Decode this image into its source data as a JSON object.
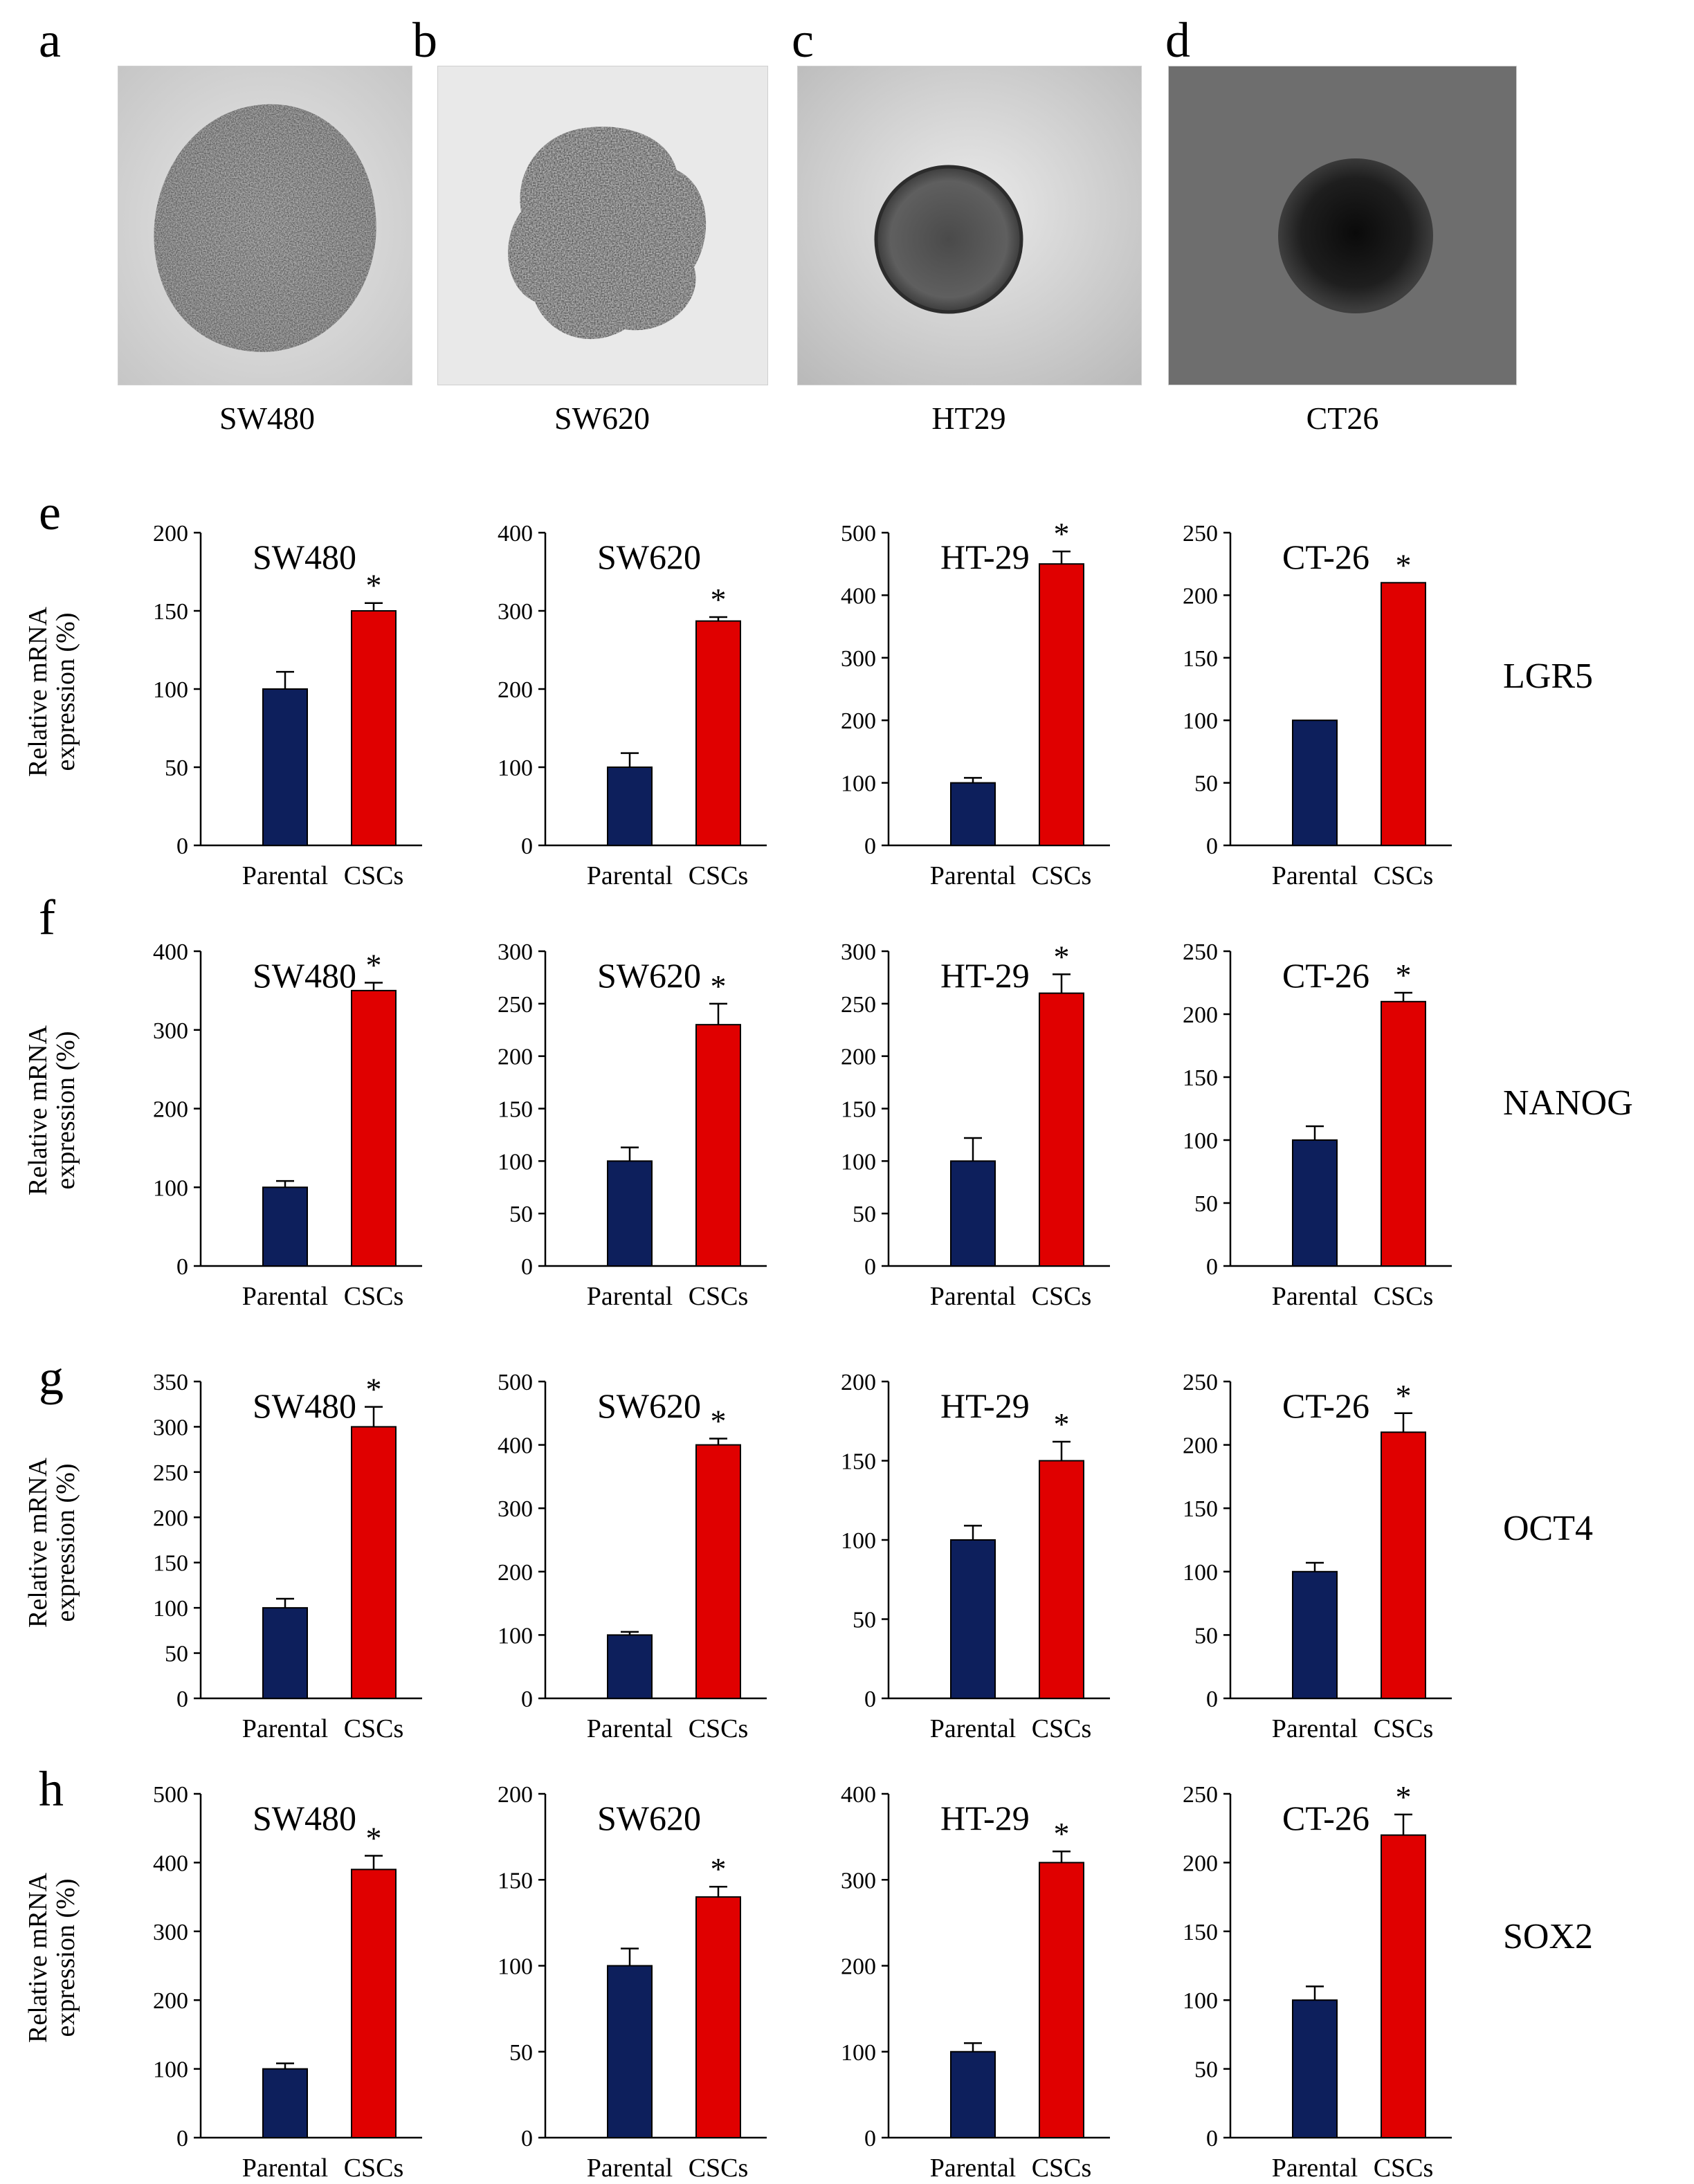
{
  "panels": {
    "letters": [
      "a",
      "b",
      "c",
      "d",
      "e",
      "f",
      "g",
      "h"
    ],
    "images": [
      {
        "letter": "a",
        "caption": "SW480"
      },
      {
        "letter": "b",
        "caption": "SW620"
      },
      {
        "letter": "c",
        "caption": "HT29"
      },
      {
        "letter": "d",
        "caption": "CT26"
      }
    ]
  },
  "ylabel_line1": "Relative mRNA",
  "ylabel_line2": "expression (%)",
  "genes": [
    "LGR5",
    "NANOG",
    "OCT4",
    "SOX2"
  ],
  "colors": {
    "parental": "#0d1f5c",
    "cscs": "#e00000"
  },
  "chart_data": [
    {
      "type": "bar",
      "row": "e",
      "gene": "LGR5",
      "title": "SW480",
      "categories": [
        "Parental",
        "CSCs"
      ],
      "values": [
        100,
        150
      ],
      "errors": [
        11,
        5
      ],
      "ylim": [
        0,
        200
      ],
      "ticks": [
        0,
        50,
        100,
        150,
        200
      ],
      "significance": [
        "",
        "*"
      ]
    },
    {
      "type": "bar",
      "row": "e",
      "gene": "LGR5",
      "title": "SW620",
      "categories": [
        "Parental",
        "CSCs"
      ],
      "values": [
        100,
        287
      ],
      "errors": [
        18,
        5
      ],
      "ylim": [
        0,
        400
      ],
      "ticks": [
        0,
        100,
        200,
        300,
        400
      ],
      "significance": [
        "",
        "*"
      ]
    },
    {
      "type": "bar",
      "row": "e",
      "gene": "LGR5",
      "title": "HT-29",
      "categories": [
        "Parental",
        "CSCs"
      ],
      "values": [
        100,
        450
      ],
      "errors": [
        8,
        20
      ],
      "ylim": [
        0,
        500
      ],
      "ticks": [
        0,
        100,
        200,
        300,
        400,
        500
      ],
      "significance": [
        "",
        "*"
      ]
    },
    {
      "type": "bar",
      "row": "e",
      "gene": "LGR5",
      "title": "CT-26",
      "categories": [
        "Parental",
        "CSCs"
      ],
      "values": [
        100,
        210
      ],
      "errors": [
        0,
        0
      ],
      "ylim": [
        0,
        250
      ],
      "ticks": [
        0,
        50,
        100,
        150,
        200,
        250
      ],
      "significance": [
        "",
        "*"
      ]
    },
    {
      "type": "bar",
      "row": "f",
      "gene": "NANOG",
      "title": "SW480",
      "categories": [
        "Parental",
        "CSCs"
      ],
      "values": [
        100,
        350
      ],
      "errors": [
        8,
        10
      ],
      "ylim": [
        0,
        400
      ],
      "ticks": [
        0,
        100,
        200,
        300,
        400
      ],
      "significance": [
        "",
        "*"
      ]
    },
    {
      "type": "bar",
      "row": "f",
      "gene": "NANOG",
      "title": "SW620",
      "categories": [
        "Parental",
        "CSCs"
      ],
      "values": [
        100,
        230
      ],
      "errors": [
        13,
        20
      ],
      "ylim": [
        0,
        300
      ],
      "ticks": [
        0,
        50,
        100,
        150,
        200,
        250,
        300
      ],
      "significance": [
        "",
        "*"
      ]
    },
    {
      "type": "bar",
      "row": "f",
      "gene": "NANOG",
      "title": "HT-29",
      "categories": [
        "Parental",
        "CSCs"
      ],
      "values": [
        100,
        260
      ],
      "errors": [
        22,
        18
      ],
      "ylim": [
        0,
        300
      ],
      "ticks": [
        0,
        50,
        100,
        150,
        200,
        250,
        300
      ],
      "significance": [
        "",
        "*"
      ]
    },
    {
      "type": "bar",
      "row": "f",
      "gene": "NANOG",
      "title": "CT-26",
      "categories": [
        "Parental",
        "CSCs"
      ],
      "values": [
        100,
        210
      ],
      "errors": [
        11,
        7
      ],
      "ylim": [
        0,
        250
      ],
      "ticks": [
        0,
        50,
        100,
        150,
        200,
        250
      ],
      "significance": [
        "",
        "*"
      ]
    },
    {
      "type": "bar",
      "row": "g",
      "gene": "OCT4",
      "title": "SW480",
      "categories": [
        "Parental",
        "CSCs"
      ],
      "values": [
        100,
        300
      ],
      "errors": [
        10,
        22
      ],
      "ylim": [
        0,
        350
      ],
      "ticks": [
        0,
        50,
        100,
        150,
        200,
        250,
        300,
        350
      ],
      "significance": [
        "",
        "*"
      ]
    },
    {
      "type": "bar",
      "row": "g",
      "gene": "OCT4",
      "title": "SW620",
      "categories": [
        "Parental",
        "CSCs"
      ],
      "values": [
        100,
        400
      ],
      "errors": [
        5,
        10
      ],
      "ylim": [
        0,
        500
      ],
      "ticks": [
        0,
        100,
        200,
        300,
        400,
        500
      ],
      "significance": [
        "",
        "*"
      ]
    },
    {
      "type": "bar",
      "row": "g",
      "gene": "OCT4",
      "title": "HT-29",
      "categories": [
        "Parental",
        "CSCs"
      ],
      "values": [
        100,
        150
      ],
      "errors": [
        9,
        12
      ],
      "ylim": [
        0,
        200
      ],
      "ticks": [
        0,
        50,
        100,
        150,
        200
      ],
      "significance": [
        "",
        "*"
      ]
    },
    {
      "type": "bar",
      "row": "g",
      "gene": "OCT4",
      "title": "CT-26",
      "categories": [
        "Parental",
        "CSCs"
      ],
      "values": [
        100,
        210
      ],
      "errors": [
        7,
        15
      ],
      "ylim": [
        0,
        250
      ],
      "ticks": [
        0,
        50,
        100,
        150,
        200,
        250
      ],
      "significance": [
        "",
        "*"
      ]
    },
    {
      "type": "bar",
      "row": "h",
      "gene": "SOX2",
      "title": "SW480",
      "categories": [
        "Parental",
        "CSCs"
      ],
      "values": [
        100,
        390
      ],
      "errors": [
        8,
        20
      ],
      "ylim": [
        0,
        500
      ],
      "ticks": [
        0,
        100,
        200,
        300,
        400,
        500
      ],
      "significance": [
        "",
        "*"
      ]
    },
    {
      "type": "bar",
      "row": "h",
      "gene": "SOX2",
      "title": "SW620",
      "categories": [
        "Parental",
        "CSCs"
      ],
      "values": [
        100,
        140
      ],
      "errors": [
        10,
        6
      ],
      "ylim": [
        0,
        200
      ],
      "ticks": [
        0,
        50,
        100,
        150,
        200
      ],
      "significance": [
        "",
        "*"
      ]
    },
    {
      "type": "bar",
      "row": "h",
      "gene": "SOX2",
      "title": "HT-29",
      "categories": [
        "Parental",
        "CSCs"
      ],
      "values": [
        100,
        320
      ],
      "errors": [
        10,
        13
      ],
      "ylim": [
        0,
        400
      ],
      "ticks": [
        0,
        100,
        200,
        300,
        400
      ],
      "significance": [
        "",
        "*"
      ]
    },
    {
      "type": "bar",
      "row": "h",
      "gene": "SOX2",
      "title": "CT-26",
      "categories": [
        "Parental",
        "CSCs"
      ],
      "values": [
        100,
        220
      ],
      "errors": [
        10,
        15
      ],
      "ylim": [
        0,
        250
      ],
      "ticks": [
        0,
        50,
        100,
        150,
        200,
        250
      ],
      "significance": [
        "",
        "*"
      ]
    }
  ]
}
